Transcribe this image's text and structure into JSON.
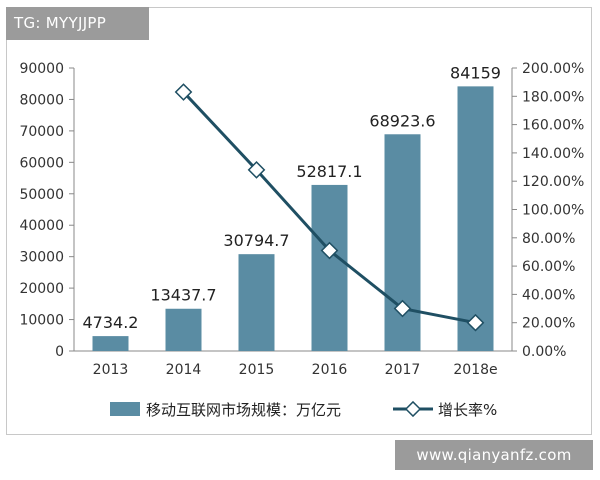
{
  "header": {
    "tag_text": "TG: MYYJJPP"
  },
  "watermark": {
    "text": "www.qianyanfz.com"
  },
  "chart_data": {
    "type": "bar",
    "categories": [
      "2013",
      "2014",
      "2015",
      "2016",
      "2017",
      "2018e"
    ],
    "series": [
      {
        "name": "移动互联网市场规模：万亿元",
        "type": "bar",
        "axis": "left",
        "values": [
          4734.2,
          13437.7,
          30794.7,
          52817.1,
          68923.6,
          84159
        ],
        "labels": [
          "4734.2",
          "13437.7",
          "30794.7",
          "52817.1",
          "68923.6",
          "84159"
        ],
        "color": "#5a8ca3"
      },
      {
        "name": "增长率%",
        "type": "line",
        "axis": "right",
        "values": [
          null,
          183,
          128,
          71,
          30,
          20
        ],
        "color": "#1f4f63"
      }
    ],
    "y_left": {
      "min": 0,
      "max": 90000,
      "ticks": [
        "0",
        "10000",
        "20000",
        "30000",
        "40000",
        "50000",
        "60000",
        "70000",
        "80000",
        "90000"
      ]
    },
    "y_right": {
      "min": 0,
      "max": 200,
      "ticks": [
        "0.00%",
        "20.00%",
        "40.00%",
        "60.00%",
        "80.00%",
        "100.00%",
        "120.00%",
        "140.00%",
        "160.00%",
        "180.00%",
        "200.00%"
      ]
    },
    "legend_position": "bottom",
    "grid": false
  }
}
